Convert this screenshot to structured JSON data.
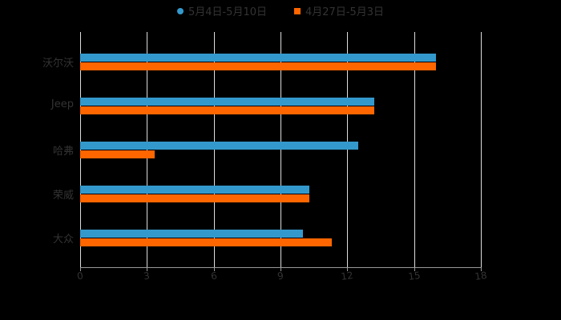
{
  "chart_data": {
    "type": "bar",
    "orientation": "horizontal",
    "title": "",
    "xlabel": "",
    "ylabel": "",
    "categories": [
      "沃尔沃",
      "Jeep",
      "哈弗",
      "荣威",
      "大众"
    ],
    "series": [
      {
        "name": "5月4日-5月10日",
        "color": "#3399cc",
        "values": [
          16.0,
          13.2,
          12.5,
          10.3,
          10.0
        ]
      },
      {
        "name": "4月27日-5月3日",
        "color": "#ff6600",
        "values": [
          16.0,
          13.2,
          3.35,
          10.3,
          11.3
        ]
      }
    ],
    "xlim": [
      0,
      18
    ],
    "xticks": [
      "0",
      "3",
      "6",
      "9",
      "12",
      "15",
      "18"
    ],
    "grid": true,
    "legend_position": "top"
  },
  "legend": {
    "items": [
      {
        "label": "5月4日-5月10日",
        "color": "#3399cc"
      },
      {
        "label": "4月27日-5月3日",
        "color": "#ff6600"
      }
    ]
  }
}
